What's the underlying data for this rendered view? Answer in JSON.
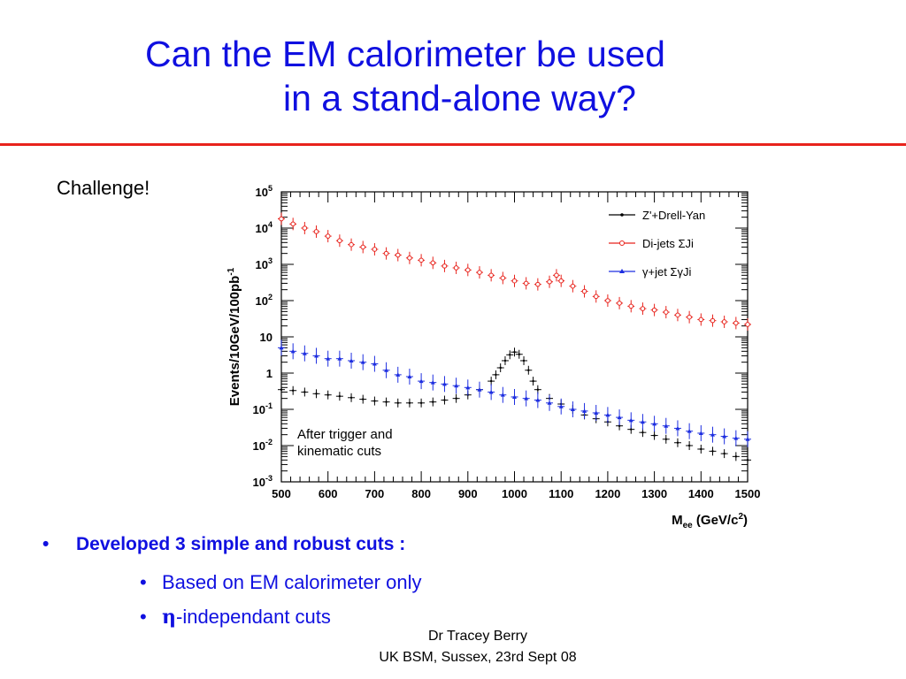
{
  "title": {
    "line1": "Can the EM calorimeter be used",
    "line2": "in a stand-alone way?"
  },
  "challenge": "Challenge!",
  "colors": {
    "title": "#1010e0",
    "rule": "#e8231c",
    "dijets": "#e8231c",
    "gammajet": "#1d2ee0",
    "zprime": "#000000"
  },
  "bullets": {
    "main": "Developed 3 simple and robust cuts :",
    "sub1": "Based on EM calorimeter only",
    "sub2_symbol": "η",
    "sub2_text": "-independant cuts"
  },
  "footer": {
    "line1": "Dr Tracey Berry",
    "line2": "UK BSM, Sussex, 23rd Sept 08"
  },
  "chart_data": {
    "type": "scatter",
    "log_y": true,
    "xlim": [
      500,
      1500
    ],
    "ylim": [
      0.001,
      100000
    ],
    "xticks": [
      "500",
      "600",
      "700",
      "800",
      "900",
      "1000",
      "1100",
      "1200",
      "1300",
      "1400",
      "1500"
    ],
    "yticks": [
      "10^-3",
      "10^-2",
      "10^-1",
      "1",
      "10",
      "10^2",
      "10^3",
      "10^4",
      "10^5"
    ],
    "xlabel": "M_ee (GeV/c^2)",
    "ylabel": "Events/10GeV/100pb^-1",
    "annotation": [
      "After trigger and",
      "kinematic cuts"
    ],
    "legend_position": "top-right",
    "series": [
      {
        "name": "Z'+Drell-Yan",
        "color": "#000000",
        "marker": "cross",
        "x": [
          500,
          525,
          550,
          575,
          600,
          625,
          650,
          675,
          700,
          725,
          750,
          775,
          800,
          825,
          850,
          875,
          900,
          925,
          950,
          960,
          970,
          980,
          990,
          1000,
          1010,
          1020,
          1030,
          1040,
          1050,
          1075,
          1100,
          1125,
          1150,
          1175,
          1200,
          1225,
          1250,
          1275,
          1300,
          1325,
          1350,
          1375,
          1400,
          1425,
          1450,
          1475,
          1500
        ],
        "y": [
          0.35,
          0.33,
          0.3,
          0.27,
          0.25,
          0.23,
          0.21,
          0.19,
          0.17,
          0.16,
          0.15,
          0.15,
          0.15,
          0.16,
          0.18,
          0.2,
          0.25,
          0.35,
          0.6,
          0.9,
          1.4,
          2.2,
          3.2,
          3.8,
          3.3,
          2.2,
          1.2,
          0.6,
          0.35,
          0.2,
          0.14,
          0.1,
          0.07,
          0.055,
          0.045,
          0.035,
          0.028,
          0.023,
          0.019,
          0.015,
          0.012,
          0.01,
          0.008,
          0.007,
          0.006,
          0.005,
          0.004
        ]
      },
      {
        "name": "Di-jets ΣJi",
        "color": "#e8231c",
        "marker": "circle",
        "x": [
          500,
          525,
          550,
          575,
          600,
          625,
          650,
          675,
          700,
          725,
          750,
          775,
          800,
          825,
          850,
          875,
          900,
          925,
          950,
          975,
          1000,
          1025,
          1050,
          1075,
          1090,
          1100,
          1125,
          1150,
          1175,
          1200,
          1225,
          1250,
          1275,
          1300,
          1325,
          1350,
          1375,
          1400,
          1425,
          1450,
          1475,
          1500
        ],
        "y": [
          18000,
          13000,
          10000,
          8000,
          6000,
          4500,
          3500,
          3000,
          2600,
          2000,
          1800,
          1500,
          1300,
          1100,
          900,
          800,
          700,
          600,
          500,
          420,
          350,
          300,
          280,
          330,
          500,
          350,
          250,
          180,
          130,
          100,
          85,
          70,
          60,
          55,
          48,
          40,
          35,
          30,
          28,
          26,
          24,
          22
        ]
      },
      {
        "name": "γ+jet ΣγJi",
        "color": "#1d2ee0",
        "marker": "triangle",
        "x": [
          500,
          525,
          550,
          575,
          600,
          625,
          650,
          675,
          700,
          725,
          750,
          775,
          800,
          825,
          850,
          875,
          900,
          925,
          950,
          975,
          1000,
          1025,
          1050,
          1075,
          1100,
          1125,
          1150,
          1175,
          1200,
          1225,
          1250,
          1275,
          1300,
          1325,
          1350,
          1375,
          1400,
          1425,
          1450,
          1475,
          1500
        ],
        "y": [
          5,
          4,
          3.5,
          3,
          2.5,
          2.5,
          2.2,
          2,
          1.8,
          1.2,
          0.9,
          0.8,
          0.6,
          0.55,
          0.5,
          0.45,
          0.4,
          0.35,
          0.3,
          0.25,
          0.22,
          0.2,
          0.18,
          0.15,
          0.12,
          0.1,
          0.09,
          0.08,
          0.07,
          0.06,
          0.05,
          0.045,
          0.04,
          0.035,
          0.03,
          0.025,
          0.022,
          0.02,
          0.018,
          0.016,
          0.015
        ]
      }
    ]
  }
}
